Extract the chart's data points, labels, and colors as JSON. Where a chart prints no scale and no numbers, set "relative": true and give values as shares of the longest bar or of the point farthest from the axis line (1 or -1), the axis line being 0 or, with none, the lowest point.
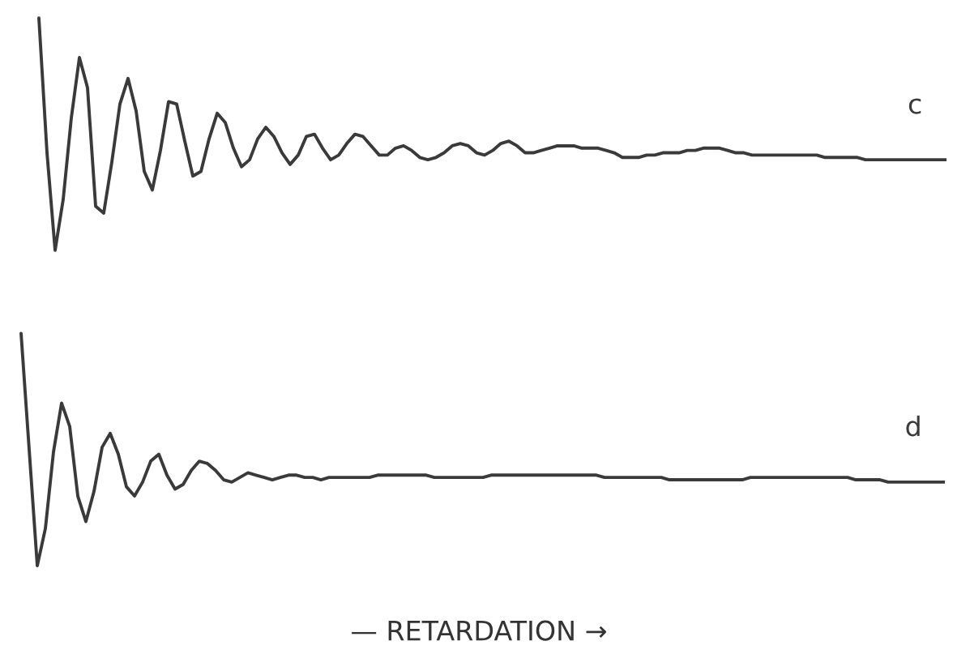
{
  "chart_data": [
    {
      "type": "line",
      "relative": true,
      "tick_labels": false,
      "categories": [
        null,
        null,
        null,
        null,
        null,
        null,
        null,
        null,
        null,
        null,
        null,
        null,
        null,
        null,
        null,
        null,
        null,
        null,
        null,
        null,
        null,
        null,
        null,
        null,
        null,
        null,
        null,
        null,
        null,
        null,
        null,
        null,
        null,
        null,
        null,
        null,
        null,
        null,
        null,
        null,
        null,
        null,
        null,
        null,
        null,
        null,
        null,
        null,
        null,
        null,
        null,
        null,
        null,
        null,
        null,
        null,
        null,
        null,
        null,
        null,
        null,
        null,
        null,
        null,
        null,
        null,
        null,
        null,
        null,
        null,
        null,
        null,
        null,
        null,
        null,
        null,
        null,
        null,
        null,
        null,
        null,
        null,
        null,
        null,
        null,
        null,
        null,
        null,
        null,
        null,
        null,
        null,
        null,
        null,
        null,
        null,
        null,
        null,
        null,
        null,
        null,
        null,
        null,
        null,
        null,
        null,
        null,
        null,
        null,
        null,
        null,
        null,
        null,
        null
      ],
      "series": [
        {
          "name": "c",
          "color": "#3a3a3a",
          "values": [
            null,
            1,
            0.42,
            0,
            0.22,
            0.57,
            0.83,
            0.7,
            0.19,
            0.16,
            0.38,
            0.63,
            0.74,
            0.6,
            0.34,
            0.26,
            0.43,
            0.64,
            0.63,
            0.47,
            0.32,
            0.34,
            0.48,
            0.59,
            0.55,
            0.44,
            0.36,
            0.39,
            0.48,
            0.53,
            0.49,
            0.42,
            0.37,
            0.41,
            0.49,
            0.5,
            0.44,
            0.39,
            0.41,
            0.46,
            0.5,
            0.49,
            0.45,
            0.41,
            0.41,
            0.44,
            0.45,
            0.43,
            0.4,
            0.39,
            0.4,
            0.42,
            0.45,
            0.46,
            0.45,
            0.42,
            0.41,
            0.43,
            0.46,
            0.47,
            0.45,
            0.42,
            0.42,
            0.43,
            0.44,
            0.45,
            0.45,
            0.45,
            0.44,
            0.44,
            0.44,
            0.43,
            0.42,
            0.4,
            0.4,
            0.4,
            0.41,
            0.41,
            0.42,
            0.42,
            0.42,
            0.43,
            0.43,
            0.44,
            0.44,
            0.44,
            0.43,
            0.42,
            0.42,
            0.41,
            0.41,
            0.41,
            0.41,
            0.41,
            0.41,
            0.41,
            0.41,
            0.41,
            0.4,
            0.4,
            0.4,
            0.4,
            0.4,
            0.39,
            0.39,
            0.39,
            0.39,
            0.39,
            0.39,
            0.39,
            0.39,
            0.39,
            0.39,
            0.39
          ]
        }
      ]
    },
    {
      "type": "line",
      "relative": true,
      "tick_labels": false,
      "xlabel": "— RETARDATION →",
      "categories": [
        null,
        null,
        null,
        null,
        null,
        null,
        null,
        null,
        null,
        null,
        null,
        null,
        null,
        null,
        null,
        null,
        null,
        null,
        null,
        null,
        null,
        null,
        null,
        null,
        null,
        null,
        null,
        null,
        null,
        null,
        null,
        null,
        null,
        null,
        null,
        null,
        null,
        null,
        null,
        null,
        null,
        null,
        null,
        null,
        null,
        null,
        null,
        null,
        null,
        null,
        null,
        null,
        null,
        null,
        null,
        null,
        null,
        null,
        null,
        null,
        null,
        null,
        null,
        null,
        null,
        null,
        null,
        null,
        null,
        null,
        null,
        null,
        null,
        null,
        null,
        null,
        null,
        null,
        null,
        null,
        null,
        null,
        null,
        null,
        null,
        null,
        null,
        null,
        null,
        null,
        null,
        null,
        null,
        null,
        null,
        null,
        null,
        null,
        null,
        null,
        null,
        null,
        null,
        null,
        null,
        null,
        null,
        null,
        null,
        null,
        null,
        null,
        null,
        null,
        null,
        null
      ],
      "series": [
        {
          "name": "d",
          "color": "#3a3a3a",
          "values": [
            null,
            1,
            0.5,
            0,
            0.16,
            0.49,
            0.7,
            0.6,
            0.3,
            0.19,
            0.32,
            0.51,
            0.57,
            0.48,
            0.34,
            0.3,
            0.36,
            0.45,
            0.48,
            0.39,
            0.33,
            0.35,
            0.41,
            0.45,
            0.44,
            0.41,
            0.37,
            0.36,
            0.38,
            0.4,
            0.39,
            0.38,
            0.37,
            0.38,
            0.39,
            0.39,
            0.38,
            0.38,
            0.37,
            0.38,
            0.38,
            0.38,
            0.38,
            0.38,
            0.38,
            0.39,
            0.39,
            0.39,
            0.39,
            0.39,
            0.39,
            0.39,
            0.38,
            0.38,
            0.38,
            0.38,
            0.38,
            0.38,
            0.38,
            0.39,
            0.39,
            0.39,
            0.39,
            0.39,
            0.39,
            0.39,
            0.39,
            0.39,
            0.39,
            0.39,
            0.39,
            0.39,
            0.39,
            0.38,
            0.38,
            0.38,
            0.38,
            0.38,
            0.38,
            0.38,
            0.38,
            0.37,
            0.37,
            0.37,
            0.37,
            0.37,
            0.37,
            0.37,
            0.37,
            0.37,
            0.37,
            0.38,
            0.38,
            0.38,
            0.38,
            0.38,
            0.38,
            0.38,
            0.38,
            0.38,
            0.38,
            0.38,
            0.38,
            0.38,
            0.37,
            0.37,
            0.37,
            0.37,
            0.36,
            0.36,
            0.36,
            0.36,
            0.36,
            0.36,
            0.36,
            0.36
          ]
        }
      ]
    }
  ]
}
